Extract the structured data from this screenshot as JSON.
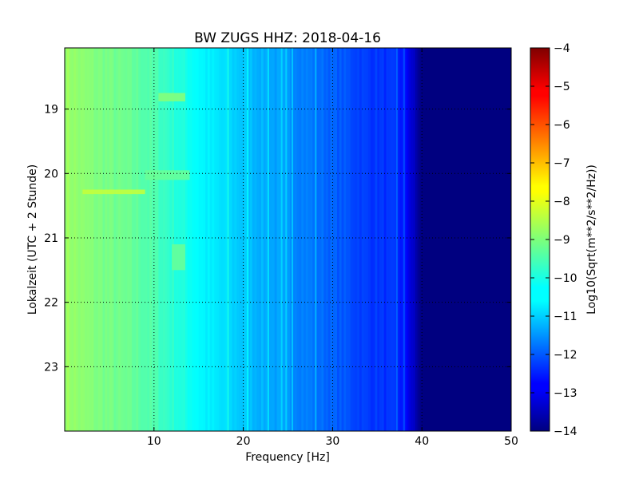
{
  "chart_data": {
    "type": "heatmap",
    "title": "BW ZUGS HHZ: 2018-04-16",
    "xlabel": "Frequency [Hz]",
    "ylabel": "Lokalzeit (UTC + 2 Stunde)",
    "xlim": [
      0,
      50
    ],
    "ylim": [
      24,
      18.05
    ],
    "y_inverted": true,
    "x_ticks": [
      10,
      20,
      30,
      40,
      50
    ],
    "y_ticks": [
      19,
      20,
      21,
      22,
      23
    ],
    "grid": true,
    "colormap": "jet",
    "colorbar": {
      "label": "Log10(Sqrt(m**2/s**2/Hz))",
      "range": [
        -14,
        -4
      ],
      "ticks": [
        -14,
        -13,
        -12,
        -11,
        -10,
        -9,
        -8,
        -7,
        -6,
        -5,
        -4
      ]
    },
    "frequency_profile": {
      "frequency_hz": [
        0,
        2,
        5,
        8,
        10,
        12,
        14,
        16,
        18,
        20,
        22,
        24,
        26,
        28,
        30,
        32,
        34,
        35,
        36,
        37,
        38,
        38.5,
        39,
        39.5,
        40,
        45,
        50
      ],
      "log10_amplitude": [
        -8.7,
        -8.9,
        -9.1,
        -9.3,
        -9.5,
        -9.8,
        -10.1,
        -10.4,
        -10.6,
        -10.8,
        -11.0,
        -11.2,
        -11.4,
        -11.6,
        -11.8,
        -12.0,
        -12.2,
        -12.2,
        -12.3,
        -12.3,
        -12.6,
        -12.9,
        -13.3,
        -13.7,
        -14.0,
        -14.0,
        -14.0
      ]
    },
    "spectral_lines_hz": [
      18.3,
      20.5,
      22.8,
      24.3,
      24.8,
      25.5,
      28.1,
      37.2,
      38.0
    ],
    "bright_patches": [
      {
        "freq_hz": [
          10.5,
          13.5
        ],
        "time": [
          18.75,
          18.88
        ],
        "log10_amplitude": -8.9
      },
      {
        "freq_hz": [
          9,
          14
        ],
        "time": [
          19.95,
          20.1
        ],
        "log10_amplitude": -9.2
      },
      {
        "freq_hz": [
          2,
          9
        ],
        "time": [
          20.25,
          20.32
        ],
        "log10_amplitude": -8.3
      },
      {
        "freq_hz": [
          12,
          13.5
        ],
        "time": [
          21.1,
          21.5
        ],
        "log10_amplitude": -9.2
      }
    ]
  }
}
